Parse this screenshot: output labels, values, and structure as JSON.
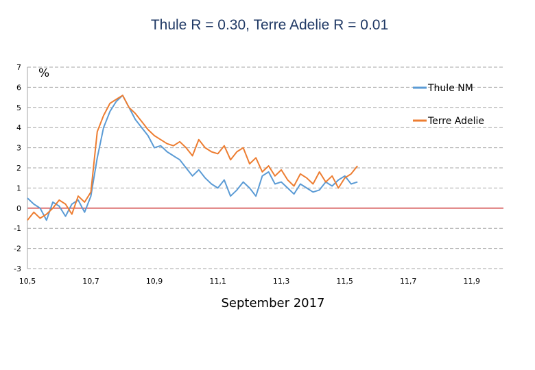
{
  "chart_data": {
    "type": "line",
    "title": "Thule R = 0.30, Terre Adelie R = 0.01",
    "unit_label": "%",
    "xlabel": "September 2017",
    "xlim": [
      10.5,
      12.0
    ],
    "ylim": [
      -3,
      7
    ],
    "x_ticks": [
      10.5,
      10.7,
      10.9,
      11.1,
      11.3,
      11.5,
      11.7,
      11.9
    ],
    "x_tick_labels": [
      "10,5",
      "10,7",
      "10,9",
      "11,1",
      "11,3",
      "11,5",
      "11,7",
      "11,9"
    ],
    "y_ticks": [
      7,
      6,
      5,
      4,
      3,
      2,
      1,
      0,
      -1,
      -2,
      -3
    ],
    "y_tick_labels": [
      "7",
      "6",
      "5",
      "4",
      "3",
      "2",
      "1",
      "0",
      "-1",
      "-2",
      "-3"
    ],
    "grid": true,
    "zero_line_color": "#c00000",
    "legend": "right",
    "series": [
      {
        "name": "Thule NM",
        "color": "#5b9bd5",
        "x": [
          10.5,
          10.52,
          10.54,
          10.56,
          10.58,
          10.6,
          10.62,
          10.64,
          10.66,
          10.68,
          10.7,
          10.72,
          10.74,
          10.76,
          10.78,
          10.8,
          10.82,
          10.84,
          10.86,
          10.88,
          10.9,
          10.92,
          10.94,
          10.96,
          10.98,
          11.0,
          11.02,
          11.04,
          11.06,
          11.08,
          11.1,
          11.12,
          11.14,
          11.16,
          11.18,
          11.2,
          11.22,
          11.24,
          11.26,
          11.28,
          11.3,
          11.32,
          11.34,
          11.36,
          11.38,
          11.4,
          11.42,
          11.44,
          11.46,
          11.48,
          11.5,
          11.52,
          11.54
        ],
        "y": [
          0.5,
          0.2,
          0.0,
          -0.6,
          0.3,
          0.1,
          -0.4,
          0.2,
          0.4,
          -0.2,
          0.6,
          2.5,
          4.0,
          4.8,
          5.3,
          5.6,
          5.0,
          4.4,
          4.0,
          3.6,
          3.0,
          3.1,
          2.8,
          2.6,
          2.4,
          2.0,
          1.6,
          1.9,
          1.5,
          1.2,
          1.0,
          1.4,
          0.6,
          0.9,
          1.3,
          1.0,
          0.6,
          1.6,
          1.8,
          1.2,
          1.3,
          1.0,
          0.7,
          1.2,
          1.0,
          0.8,
          0.9,
          1.3,
          1.1,
          1.4,
          1.6,
          1.2,
          1.3
        ]
      },
      {
        "name": "Terre Adelie",
        "color": "#ed7d31",
        "x": [
          10.5,
          10.52,
          10.54,
          10.56,
          10.58,
          10.6,
          10.62,
          10.64,
          10.66,
          10.68,
          10.7,
          10.72,
          10.74,
          10.76,
          10.78,
          10.8,
          10.82,
          10.84,
          10.86,
          10.88,
          10.9,
          10.92,
          10.94,
          10.96,
          10.98,
          11.0,
          11.02,
          11.04,
          11.06,
          11.08,
          11.1,
          11.12,
          11.14,
          11.16,
          11.18,
          11.2,
          11.22,
          11.24,
          11.26,
          11.28,
          11.3,
          11.32,
          11.34,
          11.36,
          11.38,
          11.4,
          11.42,
          11.44,
          11.46,
          11.48,
          11.5,
          11.52,
          11.54
        ],
        "y": [
          -0.6,
          -0.2,
          -0.5,
          -0.3,
          0.0,
          0.4,
          0.2,
          -0.3,
          0.6,
          0.3,
          0.8,
          3.8,
          4.6,
          5.2,
          5.4,
          5.6,
          5.0,
          4.7,
          4.3,
          3.9,
          3.6,
          3.4,
          3.2,
          3.1,
          3.3,
          3.0,
          2.6,
          3.4,
          3.0,
          2.8,
          2.7,
          3.1,
          2.4,
          2.8,
          3.0,
          2.2,
          2.5,
          1.8,
          2.1,
          1.6,
          1.9,
          1.4,
          1.1,
          1.7,
          1.5,
          1.2,
          1.8,
          1.3,
          1.6,
          1.0,
          1.5,
          1.7,
          2.1
        ]
      }
    ]
  }
}
